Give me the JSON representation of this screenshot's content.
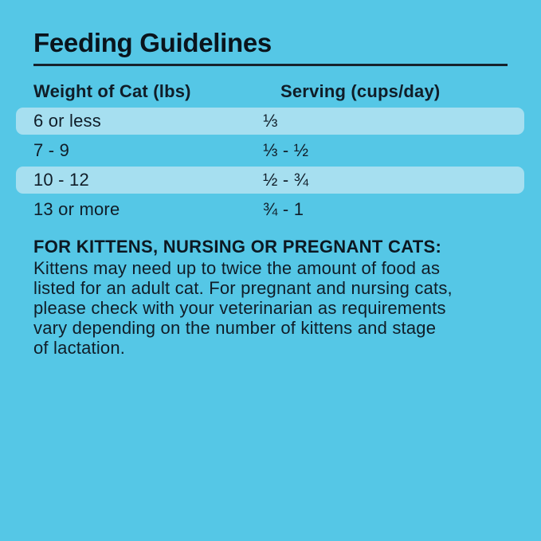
{
  "colors": {
    "background": "#55c7e6",
    "row_highlight": "#a6dff0",
    "text": "#101d28",
    "rule": "#16222c"
  },
  "title": "Feeding Guidelines",
  "table": {
    "columns": [
      {
        "label": "Weight of Cat (lbs)"
      },
      {
        "label": "Serving (cups/day)"
      }
    ],
    "rows": [
      {
        "weight": "6 or less",
        "serving": "⅓",
        "highlighted": true
      },
      {
        "weight": "7 - 9",
        "serving": "⅓ - ½",
        "highlighted": false
      },
      {
        "weight": "10 - 12",
        "serving": "½ - ¾",
        "highlighted": true
      },
      {
        "weight": "13 or more",
        "serving": "¾ - 1",
        "highlighted": false
      }
    ]
  },
  "note": {
    "heading": "FOR KITTENS, NURSING OR PREGNANT CATS:",
    "body_lines": [
      "Kittens may need up to twice the amount of food as",
      "listed for an adult cat. For pregnant and nursing cats,",
      "please check with your veterinarian as requirements",
      "vary depending on the number of kittens and stage",
      "of lactation."
    ]
  }
}
